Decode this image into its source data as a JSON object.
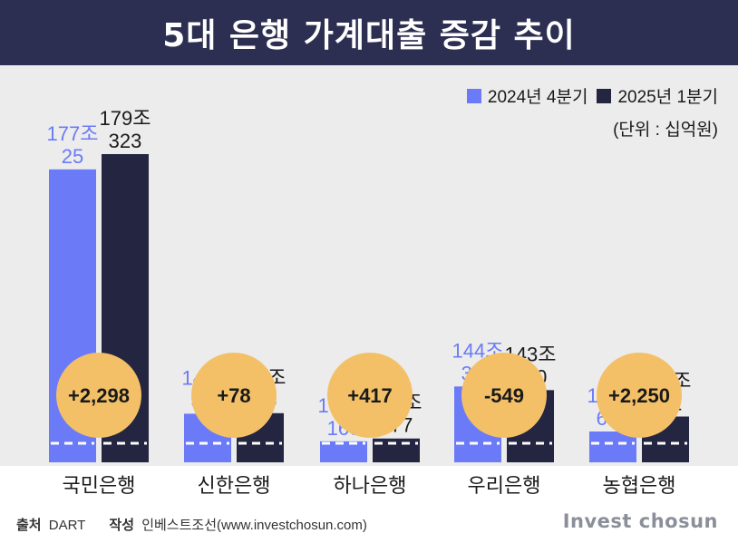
{
  "title": "5대 은행 가계대출 증감 추이",
  "legend": {
    "series1": "2024년 4분기",
    "series2": "2025년 1분기"
  },
  "unit": "(단위 : 십억원)",
  "colors": {
    "series1": "#6b7bf7",
    "series2": "#232541",
    "bubble": "#f3c067",
    "title_bg": "#2d2f52",
    "plot_bg": "#ececec"
  },
  "chart_data": {
    "type": "bar",
    "categories": [
      "국민은행",
      "신한은행",
      "하나은행",
      "우리은행",
      "농협은행"
    ],
    "series": [
      {
        "name": "2024년 4분기",
        "values": [
          177025,
          140307,
          136160,
          144399,
          137632
        ],
        "labels": [
          [
            "177조",
            "25"
          ],
          [
            "140조",
            "307"
          ],
          [
            "136조",
            "160"
          ],
          [
            "144조",
            "399"
          ],
          [
            "137조",
            "632"
          ]
        ]
      },
      {
        "name": "2025년 1분기",
        "values": [
          179323,
          140385,
          136577,
          143850,
          139882
        ],
        "labels": [
          [
            "179조",
            "323"
          ],
          [
            "140조",
            "385"
          ],
          [
            "136조",
            "577"
          ],
          [
            "143조",
            "850"
          ],
          [
            "139조",
            "882"
          ]
        ]
      }
    ],
    "changes": [
      "+2,298",
      "+78",
      "+417",
      "-549",
      "+2,250"
    ],
    "axis_break": true,
    "grid": false,
    "legend_position": "top-right"
  },
  "footer": {
    "source_label": "출처",
    "source_value": "DART",
    "author_label": "작성",
    "author_value": "인베스트조선(www.investchosun.com)",
    "brand": "Invest chosun"
  }
}
